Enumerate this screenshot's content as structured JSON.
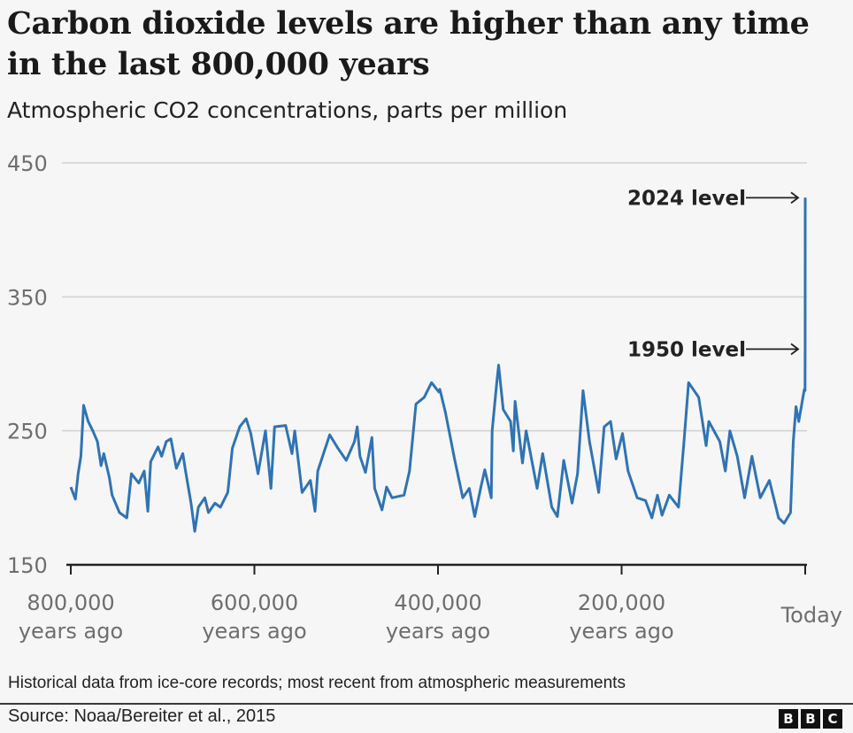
{
  "header": {
    "title": "Carbon dioxide levels are higher than any time in the last 800,000 years",
    "subtitle": "Atmospheric CO2 concentrations, parts per million"
  },
  "footer": {
    "note": "Historical data from ice-core records; most recent from atmospheric measurements",
    "source": "Source: Noaa/Bereiter et al., 2015",
    "logo": "BBC"
  },
  "chart_data": {
    "type": "line",
    "title": "Carbon dioxide levels are higher than any time in the last 800,000 years",
    "subtitle": "Atmospheric CO2 concentrations, parts per million",
    "xlabel": "",
    "ylabel": "",
    "xlim": [
      800000,
      0
    ],
    "ylim": [
      150,
      450
    ],
    "grid": true,
    "line_color": "#2f73b4",
    "y_ticks": [
      {
        "value": 450,
        "label": "450"
      },
      {
        "value": 350,
        "label": "350"
      },
      {
        "value": 250,
        "label": "250"
      },
      {
        "value": 150,
        "label": "150"
      }
    ],
    "x_ticks": [
      {
        "value": 800000,
        "label": [
          "800,000",
          "years ago"
        ]
      },
      {
        "value": 600000,
        "label": [
          "600,000",
          "years ago"
        ]
      },
      {
        "value": 400000,
        "label": [
          "400,000",
          "years ago"
        ]
      },
      {
        "value": 200000,
        "label": [
          "200,000",
          "years ago"
        ]
      },
      {
        "value": 0,
        "label": [
          "Today"
        ]
      }
    ],
    "annotations": [
      {
        "text": "2024 level",
        "value": 424
      },
      {
        "text": "1950 level",
        "value": 311
      }
    ],
    "series": [
      {
        "x_years_ago": [
          800000,
          795000,
          792000,
          789000,
          786000,
          781000,
          776000,
          771000,
          767000,
          764000,
          758000,
          755000,
          747000,
          739000,
          734000,
          726000,
          720000,
          716000,
          713000,
          705000,
          701000,
          696000,
          691000,
          685000,
          678000,
          675000,
          669000,
          665000,
          661000,
          654000,
          650000,
          643000,
          637000,
          629000,
          624000,
          616000,
          609000,
          604000,
          596000,
          588000,
          582000,
          578000,
          566000,
          559000,
          556000,
          548000,
          539000,
          534000,
          531000,
          518000,
          509000,
          500000,
          491000,
          488000,
          485000,
          479000,
          472000,
          469000,
          461000,
          456000,
          450000,
          437000,
          431000,
          424000,
          415000,
          407000,
          399000,
          398000,
          392000,
          382000,
          373000,
          366000,
          360000,
          353000,
          349000,
          342000,
          341000,
          336000,
          334000,
          329000,
          321000,
          318000,
          316000,
          308000,
          304000,
          292000,
          286000,
          276000,
          270000,
          263000,
          254000,
          248000,
          242000,
          235000,
          225000,
          219000,
          212000,
          206000,
          199000,
          193000,
          183000,
          174000,
          167000,
          161000,
          156000,
          148000,
          138000,
          132000,
          127000,
          116000,
          108000,
          105000,
          93000,
          87000,
          82000,
          74000,
          66000,
          58000,
          49000,
          39000,
          29000,
          23000,
          16000,
          13000,
          10000,
          7000,
          1000,
          200,
          74,
          0
        ],
        "values": [
          208,
          199,
          218,
          231,
          269,
          257,
          250,
          242,
          224,
          233,
          215,
          202,
          189,
          185,
          218,
          211,
          220,
          190,
          227,
          238,
          231,
          242,
          244,
          222,
          233,
          220,
          196,
          175,
          193,
          200,
          189,
          196,
          193,
          204,
          237,
          253,
          259,
          248,
          218,
          250,
          207,
          253,
          254,
          233,
          250,
          204,
          213,
          190,
          220,
          247,
          237,
          228,
          242,
          253,
          231,
          219,
          245,
          207,
          191,
          208,
          200,
          202,
          220,
          270,
          275,
          286,
          279,
          281,
          264,
          229,
          200,
          207,
          186,
          209,
          221,
          200,
          250,
          286,
          299,
          266,
          257,
          235,
          272,
          226,
          250,
          207,
          233,
          193,
          186,
          228,
          196,
          218,
          280,
          242,
          204,
          253,
          257,
          229,
          248,
          220,
          200,
          198,
          185,
          202,
          187,
          202,
          193,
          242,
          286,
          275,
          239,
          257,
          242,
          220,
          250,
          231,
          200,
          231,
          200,
          213,
          185,
          181,
          189,
          242,
          268,
          257,
          281,
          280,
          311,
          424
        ]
      }
    ]
  }
}
